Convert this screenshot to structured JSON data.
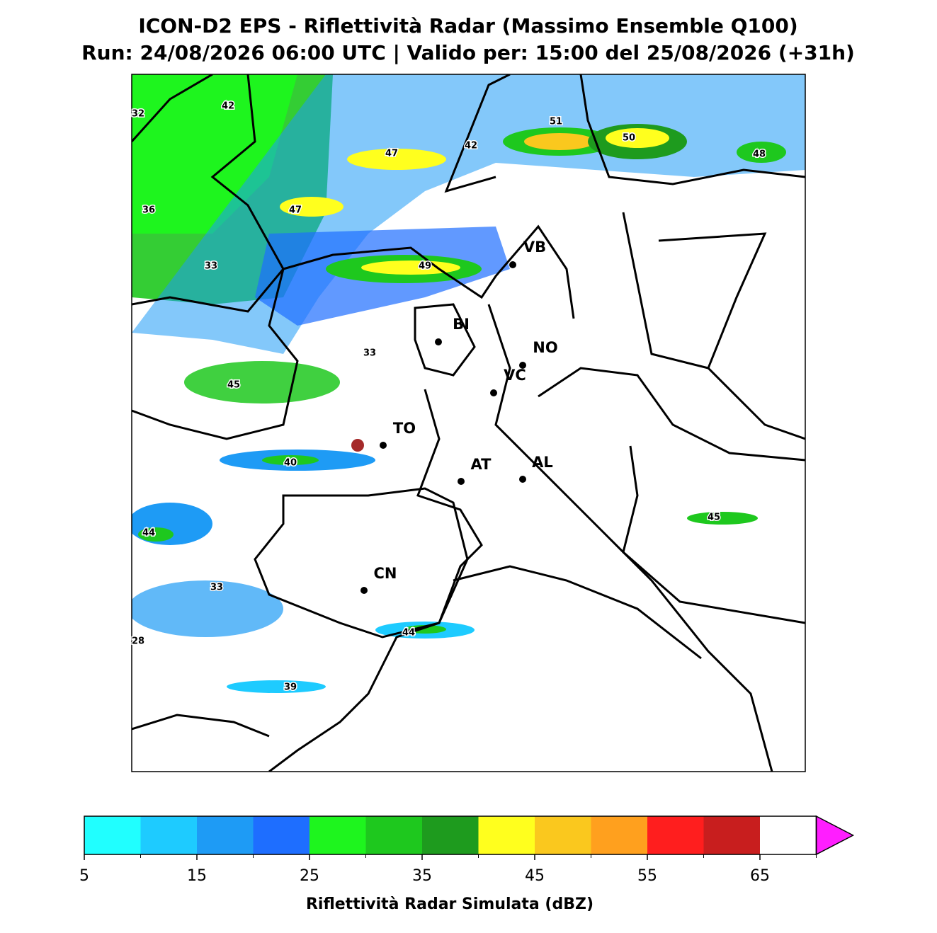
{
  "title": "ICON-D2 EPS - Riflettività Radar (Massimo Ensemble Q100)",
  "subtitle": "Run: 24/08/2026 06:00 UTC | Valido per: 15:00 del 25/08/2026 (+31h)",
  "cities": [
    "VB",
    "BI",
    "NO",
    "VC",
    "TO",
    "AT",
    "AL",
    "CN"
  ],
  "max_labels": [
    42,
    32,
    47,
    42,
    51,
    50,
    48,
    36,
    47,
    33,
    49,
    33,
    45,
    40,
    44,
    45,
    33,
    28,
    44,
    39
  ],
  "colorbar": {
    "label": "Riflettività Radar Simulata (dBZ)",
    "bounds": [
      5,
      10,
      15,
      20,
      25,
      30,
      35,
      40,
      45,
      50,
      55,
      60,
      65,
      70
    ],
    "ticks": [
      5,
      15,
      25,
      35,
      45,
      55,
      65
    ],
    "colors": [
      "#20ffff",
      "#1ecbff",
      "#1e9bf5",
      "#1e6eff",
      "#1ef51e",
      "#1ec81e",
      "#1e9b1e",
      "#ffff1e",
      "#fac81e",
      "#ffa01e",
      "#ff1e1e",
      "#c81e1e"
    ],
    "extend_color": "#ff1eff"
  }
}
